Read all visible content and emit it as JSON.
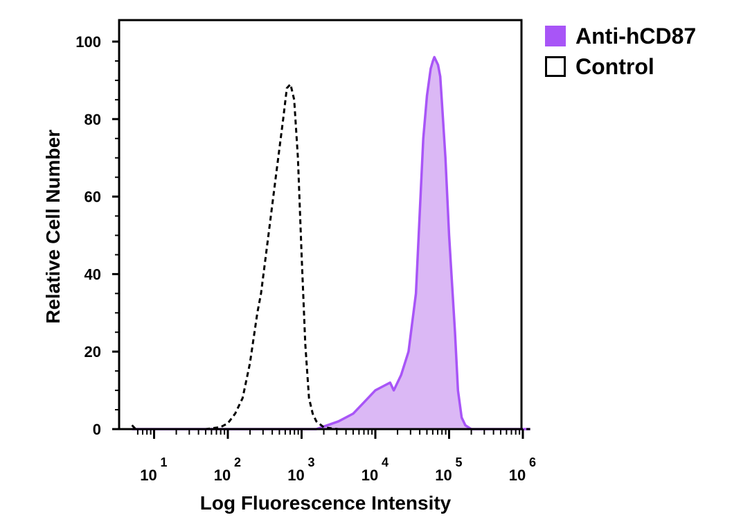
{
  "chart_data": {
    "type": "area",
    "title": "",
    "xlabel": "Log Fluorescence Intensity",
    "ylabel": "Relative Cell Number",
    "xscale": "log",
    "xlim_exp": [
      0.7,
      6.1
    ],
    "ylim": [
      0,
      100
    ],
    "y_ticks": [
      0,
      20,
      40,
      60,
      80,
      100
    ],
    "y_tick_labels": [
      "0",
      "20",
      "40",
      "60",
      "80",
      "100"
    ],
    "x_tick_exps": [
      1,
      2,
      3,
      4,
      5,
      6
    ],
    "x_tick_labels": [
      {
        "base": "10",
        "exp": "1"
      },
      {
        "base": "10",
        "exp": "2"
      },
      {
        "base": "10",
        "exp": "3"
      },
      {
        "base": "10",
        "exp": "4"
      },
      {
        "base": "10",
        "exp": "5"
      },
      {
        "base": "10",
        "exp": "6"
      }
    ],
    "legend_position": "right",
    "series": [
      {
        "name": "Anti-hCD87",
        "style": "filled",
        "color": "#a855f7",
        "fill": "#dbb8f5",
        "x_exp": [
          0.7,
          3.2,
          3.5,
          3.7,
          3.85,
          4.0,
          4.1,
          4.2,
          4.25,
          4.35,
          4.45,
          4.55,
          4.6,
          4.65,
          4.7,
          4.75,
          4.78,
          4.8,
          4.85,
          4.88,
          4.9,
          4.95,
          5.0,
          5.08,
          5.12,
          5.17,
          5.22,
          5.3,
          5.4,
          6.1
        ],
        "y": [
          0,
          0,
          2,
          4,
          7,
          10,
          11,
          12,
          10,
          14,
          20,
          35,
          55,
          75,
          86,
          93,
          95,
          96,
          94,
          91,
          85,
          70,
          50,
          25,
          10,
          3,
          1,
          0,
          0,
          0
        ]
      },
      {
        "name": "Control",
        "style": "dashed",
        "color": "#000000",
        "x_exp": [
          0.7,
          0.75,
          1.7,
          1.9,
          2.0,
          2.1,
          2.2,
          2.3,
          2.4,
          2.45,
          2.55,
          2.65,
          2.75,
          2.8,
          2.85,
          2.9,
          2.95,
          3.0,
          3.05,
          3.1,
          3.15,
          3.2,
          3.3,
          3.4,
          3.5,
          3.7,
          4.5,
          6.1
        ],
        "y": [
          1,
          0,
          0,
          0.5,
          1.5,
          4,
          8,
          17,
          30,
          35,
          50,
          65,
          80,
          88,
          89,
          85,
          70,
          45,
          22,
          8,
          4,
          2,
          0.5,
          0.2,
          0,
          0,
          0,
          0
        ]
      }
    ]
  }
}
